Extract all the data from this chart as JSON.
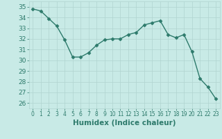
{
  "x": [
    0,
    1,
    2,
    3,
    4,
    5,
    6,
    7,
    8,
    9,
    10,
    11,
    12,
    13,
    14,
    15,
    16,
    17,
    18,
    19,
    20,
    21,
    22,
    23
  ],
  "y": [
    34.8,
    34.6,
    33.9,
    33.2,
    31.9,
    30.3,
    30.3,
    30.7,
    31.4,
    31.9,
    32.0,
    32.0,
    32.4,
    32.6,
    33.3,
    33.5,
    33.7,
    32.4,
    32.1,
    32.4,
    30.8,
    28.3,
    27.5,
    26.4
  ],
  "line_color": "#2d7a6b",
  "marker": "D",
  "marker_size": 2.5,
  "xlabel": "Humidex (Indice chaleur)",
  "xlim": [
    -0.5,
    23.5
  ],
  "ylim": [
    25.5,
    35.5
  ],
  "yticks": [
    26,
    27,
    28,
    29,
    30,
    31,
    32,
    33,
    34,
    35
  ],
  "xticks": [
    0,
    1,
    2,
    3,
    4,
    5,
    6,
    7,
    8,
    9,
    10,
    11,
    12,
    13,
    14,
    15,
    16,
    17,
    18,
    19,
    20,
    21,
    22,
    23
  ],
  "xtick_labels": [
    "0",
    "1",
    "2",
    "3",
    "4",
    "5",
    "6",
    "7",
    "8",
    "9",
    "10",
    "11",
    "12",
    "13",
    "14",
    "15",
    "16",
    "17",
    "18",
    "19",
    "20",
    "21",
    "22",
    "23"
  ],
  "bg_color": "#c8eae6",
  "grid_color": "#b0d4d0",
  "fig_bg": "#c8eae6",
  "tick_color": "#2d7a6b",
  "xlabel_fontsize": 7.5,
  "xlabel_bold": true,
  "ytick_fontsize": 6.5,
  "xtick_fontsize": 5.5
}
